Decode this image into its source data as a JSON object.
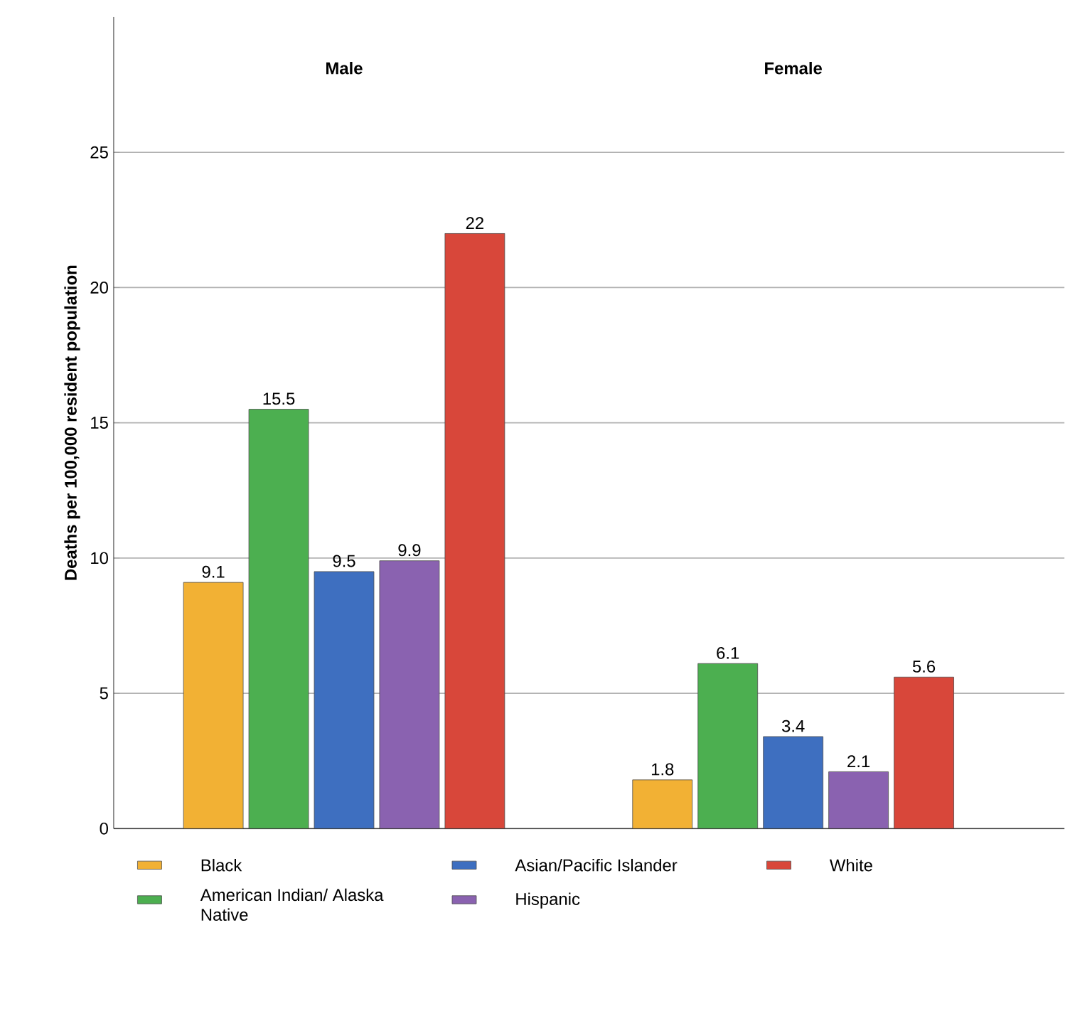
{
  "chart_data": {
    "type": "bar",
    "ylabel": "Deaths per 100,000 resident population",
    "categories": [
      "Male",
      "Female"
    ],
    "series": [
      {
        "name": "Black",
        "color": "#f2b134",
        "values": [
          9.1,
          1.8
        ]
      },
      {
        "name": "American Indian/ Alaska Native",
        "color": "#4caf50",
        "values": [
          15.5,
          6.1
        ]
      },
      {
        "name": "Asian/Pacific Islander",
        "color": "#3e6fc0",
        "values": [
          9.5,
          3.4
        ]
      },
      {
        "name": "Hispanic",
        "color": "#8a62b0",
        "values": [
          9.9,
          2.1
        ]
      },
      {
        "name": "White",
        "color": "#d8473a",
        "values": [
          22,
          5.6
        ]
      }
    ],
    "ylim": [
      0,
      30
    ],
    "yticks": [
      0,
      5,
      10,
      15,
      20,
      25
    ],
    "grid": "y",
    "legend": "bottom",
    "data_labels": true
  }
}
